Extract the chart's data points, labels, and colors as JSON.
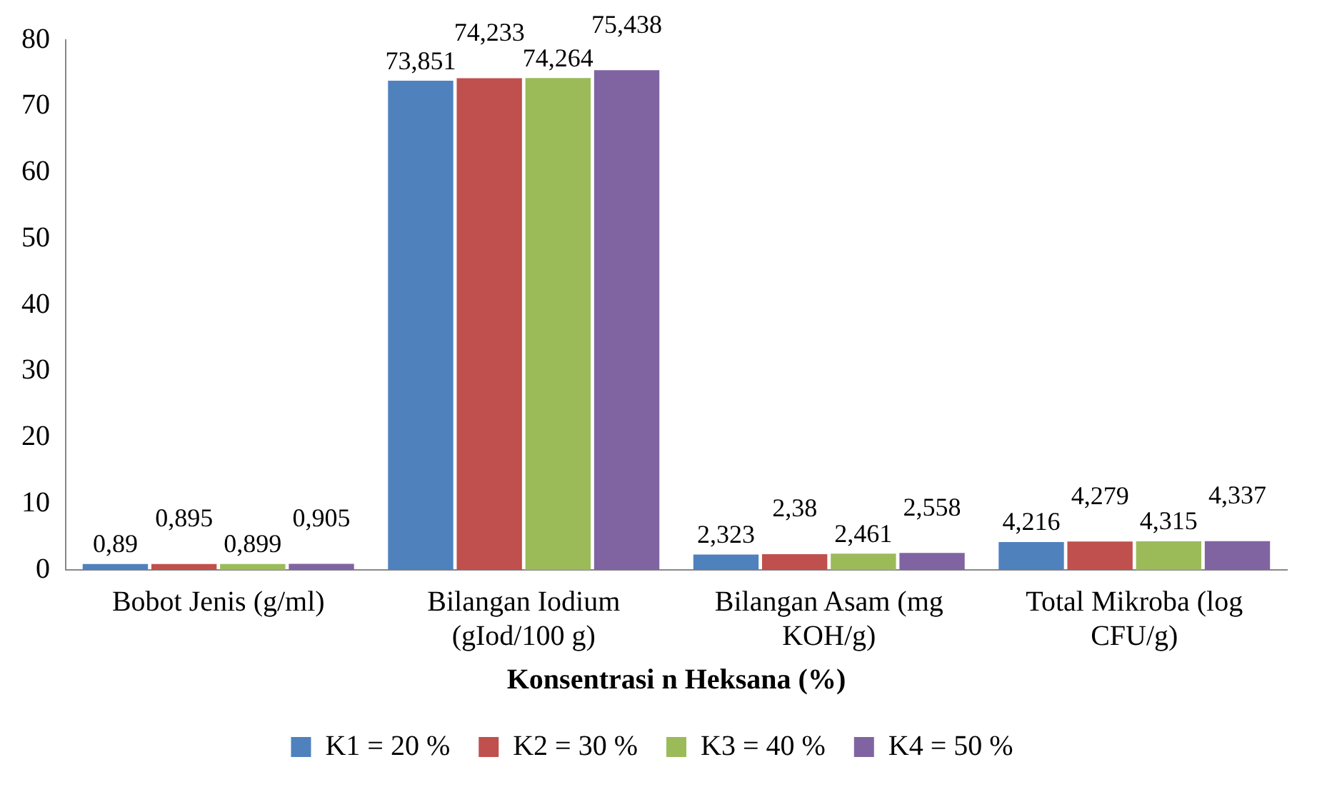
{
  "chart_data": {
    "type": "bar",
    "xlabel": "Konsentrasi n Heksana (%)",
    "categories": [
      "Bobot Jenis (g/ml)",
      "Bilangan Iodium (gIod/100 g)",
      "Bilangan Asam (mg KOH/g)",
      "Total Mikroba (log CFU/g)"
    ],
    "series": [
      {
        "name": "K1 = 20 %",
        "color": "#4f81bd",
        "values": [
          0.89,
          73.851,
          2.323,
          4.216
        ],
        "value_labels": [
          "0,89",
          "73,851",
          "2,323",
          "4,216"
        ]
      },
      {
        "name": "K2 = 30 %",
        "color": "#c0504d",
        "values": [
          0.895,
          74.233,
          2.38,
          4.279
        ],
        "value_labels": [
          "0,895",
          "74,233",
          "2,38",
          "4,279"
        ]
      },
      {
        "name": "K3 = 40 %",
        "color": "#9bbb59",
        "values": [
          0.899,
          74.264,
          2.461,
          4.315
        ],
        "value_labels": [
          "0,899",
          "74,264",
          "2,461",
          "4,315"
        ]
      },
      {
        "name": "K4 = 50 %",
        "color": "#8064a2",
        "values": [
          0.905,
          75.438,
          2.558,
          4.337
        ],
        "value_labels": [
          "0,905",
          "75,438",
          "2,558",
          "4,337"
        ]
      }
    ],
    "ylim": [
      0,
      80
    ],
    "yticks": [
      0,
      10,
      20,
      30,
      40,
      50,
      60,
      70,
      80
    ],
    "grid": false,
    "legend": "bottom"
  }
}
